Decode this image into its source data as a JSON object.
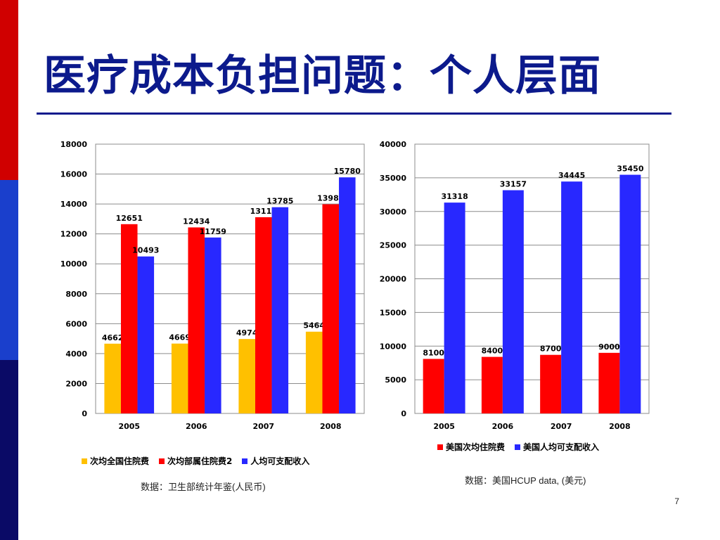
{
  "slide": {
    "title": "医疗成本负担问题：个人层面",
    "page_number": "7",
    "side_bar_colors": [
      "#d00000",
      "#1a3fcc",
      "#0a0a66"
    ]
  },
  "chart_data": [
    {
      "type": "bar",
      "categories": [
        "2005",
        "2006",
        "2007",
        "2008"
      ],
      "series": [
        {
          "name": "次均全国住院费",
          "color": "#ffc000",
          "values": [
            4662,
            4669,
            4974,
            5464
          ]
        },
        {
          "name": "次均部属住院费2",
          "color": "#ff0000",
          "values": [
            12651,
            12434,
            13117,
            13981
          ]
        },
        {
          "name": "人均可支配收入",
          "color": "#2828ff",
          "values": [
            10493,
            11759,
            13785,
            15780
          ]
        }
      ],
      "ylim": [
        0,
        18000
      ],
      "yticks": [
        0,
        2000,
        4000,
        6000,
        8000,
        10000,
        12000,
        14000,
        16000,
        18000
      ],
      "grid": true,
      "legend_position": "bottom",
      "source": "数据：卫生部统计年鉴(人民币)"
    },
    {
      "type": "bar",
      "categories": [
        "2005",
        "2006",
        "2007",
        "2008"
      ],
      "series": [
        {
          "name": "美国次均住院费",
          "color": "#ff0000",
          "values": [
            8100,
            8400,
            8700,
            9000
          ]
        },
        {
          "name": "美国人均可支配收入",
          "color": "#2828ff",
          "values": [
            31318,
            33157,
            34445,
            35450
          ]
        }
      ],
      "ylim": [
        0,
        40000
      ],
      "yticks": [
        0,
        5000,
        10000,
        15000,
        20000,
        25000,
        30000,
        35000,
        40000
      ],
      "grid": true,
      "legend_position": "bottom",
      "source": "数据：美国HCUP data, (美元)"
    }
  ]
}
